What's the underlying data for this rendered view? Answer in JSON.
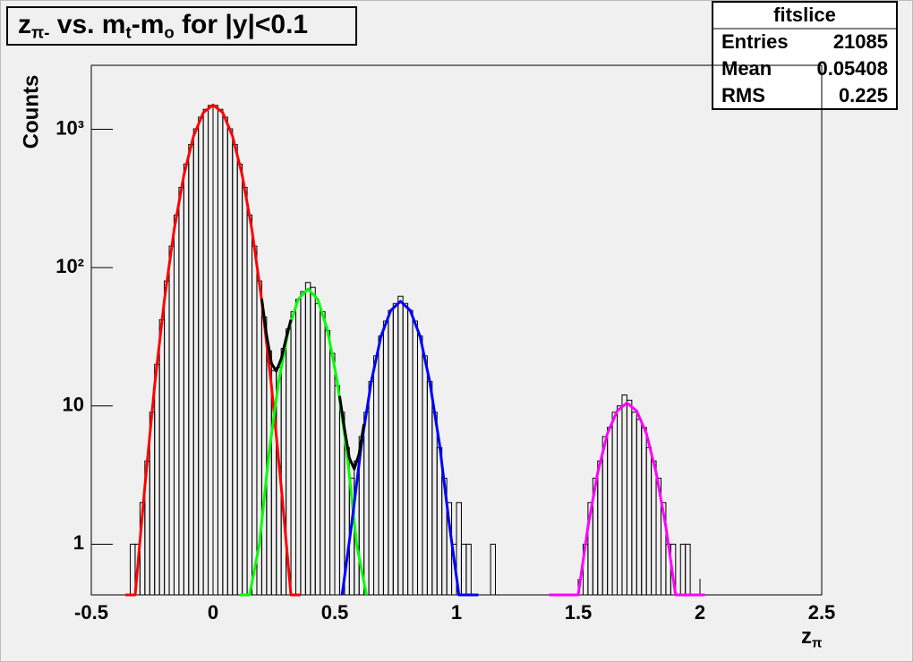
{
  "chart_data": {
    "type": "histogram",
    "title": [
      "z",
      "π-",
      " vs. m",
      "t",
      "-m",
      "o",
      " for |y|<0.1"
    ],
    "x_label": [
      "z",
      "π"
    ],
    "y_label": "Counts",
    "log_y": true,
    "xlim": [
      -0.5,
      2.5
    ],
    "xticks": [
      -0.5,
      0,
      0.5,
      1,
      1.5,
      2,
      2.5
    ],
    "ylim": [
      0.43,
      2900
    ],
    "yticks": [
      1,
      10,
      {
        "value": 100,
        "label": "10²"
      },
      {
        "value": 1000,
        "label": "10³"
      }
    ],
    "color": "#000000",
    "bins": [
      -0.36,
      -0.34,
      -0.32,
      -0.3,
      -0.28,
      -0.26,
      -0.24,
      -0.22,
      -0.2,
      -0.18,
      -0.16,
      -0.14,
      -0.12,
      -0.1,
      -0.08,
      -0.06,
      -0.04,
      -0.02,
      0,
      0.02,
      0.04,
      0.06,
      0.08,
      0.1,
      0.12,
      0.14,
      0.16,
      0.18,
      0.2,
      0.22,
      0.24,
      0.26,
      0.28,
      0.3,
      0.32,
      0.34,
      0.36,
      0.38,
      0.4,
      0.42,
      0.44,
      0.46,
      0.48,
      0.5,
      0.52,
      0.54,
      0.56,
      0.58,
      0.6,
      0.62,
      0.64,
      0.66,
      0.68,
      0.7,
      0.72,
      0.74,
      0.76,
      0.78,
      0.8,
      0.82,
      0.84,
      0.86,
      0.88,
      0.9,
      0.92,
      0.94,
      0.96,
      0.98,
      1.0,
      1.02,
      1.04,
      1.06,
      1.08,
      1.1,
      1.12,
      1.14,
      1.16,
      1.18,
      1.2,
      1.22,
      1.24,
      1.26,
      1.28,
      1.3,
      1.32,
      1.34,
      1.36,
      1.38,
      1.4,
      1.42,
      1.44,
      1.46,
      1.48,
      1.5,
      1.52,
      1.54,
      1.56,
      1.58,
      1.6,
      1.62,
      1.64,
      1.66,
      1.68,
      1.7,
      1.72,
      1.74,
      1.76,
      1.78,
      1.8,
      1.82,
      1.84,
      1.86,
      1.88,
      1.9,
      1.92,
      1.94,
      1.96,
      1.98,
      2.0
    ],
    "values": [
      0,
      1,
      1,
      2,
      4,
      9,
      20,
      42,
      80,
      143,
      240,
      380,
      561,
      776,
      1007,
      1224,
      1394,
      1488,
      1488,
      1394,
      1224,
      1007,
      776,
      561,
      380,
      240,
      143,
      80,
      44,
      25,
      18,
      19,
      26,
      36,
      48,
      59,
      67,
      78,
      72,
      55,
      48,
      35,
      24,
      14,
      9,
      5,
      3,
      4,
      6,
      9,
      15,
      23,
      32,
      41,
      49,
      55,
      62,
      55,
      49,
      41,
      32,
      23,
      15,
      9,
      5,
      3,
      2,
      1,
      2,
      1,
      1,
      0,
      0,
      0,
      0,
      1,
      0,
      0,
      0,
      0,
      0,
      0,
      0,
      0,
      0,
      0,
      0,
      0,
      0,
      0,
      0,
      0,
      0,
      0,
      1,
      2,
      3,
      4,
      6,
      7,
      9,
      10,
      12,
      11,
      9,
      8,
      7,
      5,
      4,
      3,
      2,
      1,
      1,
      0,
      1,
      1,
      0,
      0
    ],
    "fits": [
      {
        "color": "#ff0000",
        "x": [
          -0.36,
          -0.32,
          -0.28,
          -0.24,
          -0.2,
          -0.16,
          -0.12,
          -0.08,
          -0.04,
          0,
          0.04,
          0.08,
          0.12,
          0.16,
          0.2,
          0.24,
          0.28,
          0.32,
          0.36
        ],
        "values": [
          0.04,
          0.36,
          2.6,
          13.9,
          58,
          187,
          465,
          892,
          1317,
          1500,
          1317,
          892,
          465,
          187,
          58,
          13.9,
          2.6,
          0.36,
          0.04
        ]
      },
      {
        "color": "#00ff00",
        "x": [
          0.11,
          0.15,
          0.19,
          0.23,
          0.27,
          0.31,
          0.35,
          0.39,
          0.43,
          0.47,
          0.51,
          0.55,
          0.59,
          0.63
        ],
        "values": [
          0.017,
          0.15,
          0.99,
          4.6,
          15.1,
          35.4,
          59,
          70,
          59,
          35.4,
          15.1,
          4.6,
          0.99,
          0.15
        ]
      },
      {
        "color": "#0000ff",
        "x": [
          0.53,
          0.57,
          0.61,
          0.65,
          0.69,
          0.73,
          0.77,
          0.81,
          0.85,
          0.89,
          0.93,
          0.97,
          1.01,
          1.05,
          1.09
        ],
        "values": [
          0.3,
          1.42,
          5.3,
          15,
          32,
          49,
          57,
          49,
          32,
          15,
          5.3,
          1.42,
          0.3,
          0.04,
          0.003
        ]
      },
      {
        "color": "#ff00ff",
        "x": [
          1.38,
          1.42,
          1.46,
          1.5,
          1.54,
          1.58,
          1.62,
          1.66,
          1.7,
          1.74,
          1.78,
          1.82,
          1.86,
          1.9,
          1.94,
          1.98,
          2.02
        ],
        "values": [
          0.003,
          0.019,
          0.1,
          0.42,
          1.34,
          3.3,
          6.3,
          9.2,
          10.5,
          9.2,
          6.3,
          3.3,
          1.34,
          0.42,
          0.1,
          0.019,
          0.003
        ]
      },
      {
        "color": "#000000",
        "x": [
          0.2,
          0.22,
          0.24,
          0.26,
          0.28,
          0.3,
          0.32,
          0.42,
          0.52,
          0.54,
          0.56,
          0.58,
          0.6,
          0.62
        ],
        "values": [
          59.5,
          32.6,
          20.3,
          17.8,
          21.9,
          30.7,
          42,
          null,
          11.8,
          6.8,
          4.2,
          3.5,
          4.5,
          7.4
        ]
      }
    ],
    "stats": {
      "title": "fitslice",
      "rows": [
        [
          "Entries",
          21085
        ],
        [
          "Mean",
          0.05408
        ],
        [
          "RMS",
          0.225
        ]
      ]
    }
  }
}
